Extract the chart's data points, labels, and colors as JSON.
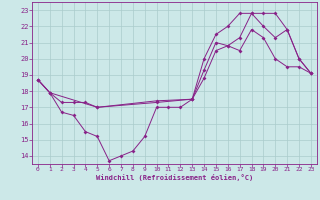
{
  "background_color": "#cce8e8",
  "grid_color": "#aacccc",
  "line_color": "#882288",
  "xlabel": "Windchill (Refroidissement éolien,°C)",
  "xlim": [
    -0.5,
    23.5
  ],
  "ylim": [
    13.5,
    23.5
  ],
  "xticks": [
    0,
    1,
    2,
    3,
    4,
    5,
    6,
    7,
    8,
    9,
    10,
    11,
    12,
    13,
    14,
    15,
    16,
    17,
    18,
    19,
    20,
    21,
    22,
    23
  ],
  "yticks": [
    14,
    15,
    16,
    17,
    18,
    19,
    20,
    21,
    22,
    23
  ],
  "line1_x": [
    0,
    1,
    2,
    3,
    4,
    5,
    6,
    7,
    8,
    9,
    10,
    11,
    12,
    13,
    14,
    15,
    16,
    17,
    18,
    19,
    20,
    21,
    22,
    23
  ],
  "line1_y": [
    18.7,
    17.9,
    16.7,
    16.5,
    15.5,
    15.2,
    13.7,
    14.0,
    14.3,
    15.2,
    17.0,
    17.0,
    17.0,
    17.5,
    19.3,
    21.0,
    20.8,
    20.5,
    21.8,
    21.3,
    20.0,
    19.5,
    19.5,
    19.1
  ],
  "line2_x": [
    0,
    1,
    2,
    3,
    4,
    5,
    10,
    13,
    14,
    15,
    16,
    17,
    18,
    19,
    20,
    21,
    22,
    23
  ],
  "line2_y": [
    18.7,
    17.9,
    17.3,
    17.3,
    17.3,
    17.0,
    17.4,
    17.5,
    20.0,
    21.5,
    22.0,
    22.8,
    22.8,
    22.0,
    21.3,
    21.8,
    20.0,
    19.1
  ],
  "line3_x": [
    0,
    1,
    5,
    10,
    13,
    14,
    15,
    16,
    17,
    18,
    19,
    20,
    21,
    22,
    23
  ],
  "line3_y": [
    18.7,
    17.9,
    17.0,
    17.3,
    17.5,
    18.8,
    20.5,
    20.8,
    21.3,
    22.8,
    22.8,
    22.8,
    21.8,
    20.0,
    19.1
  ],
  "markersize": 2.0
}
